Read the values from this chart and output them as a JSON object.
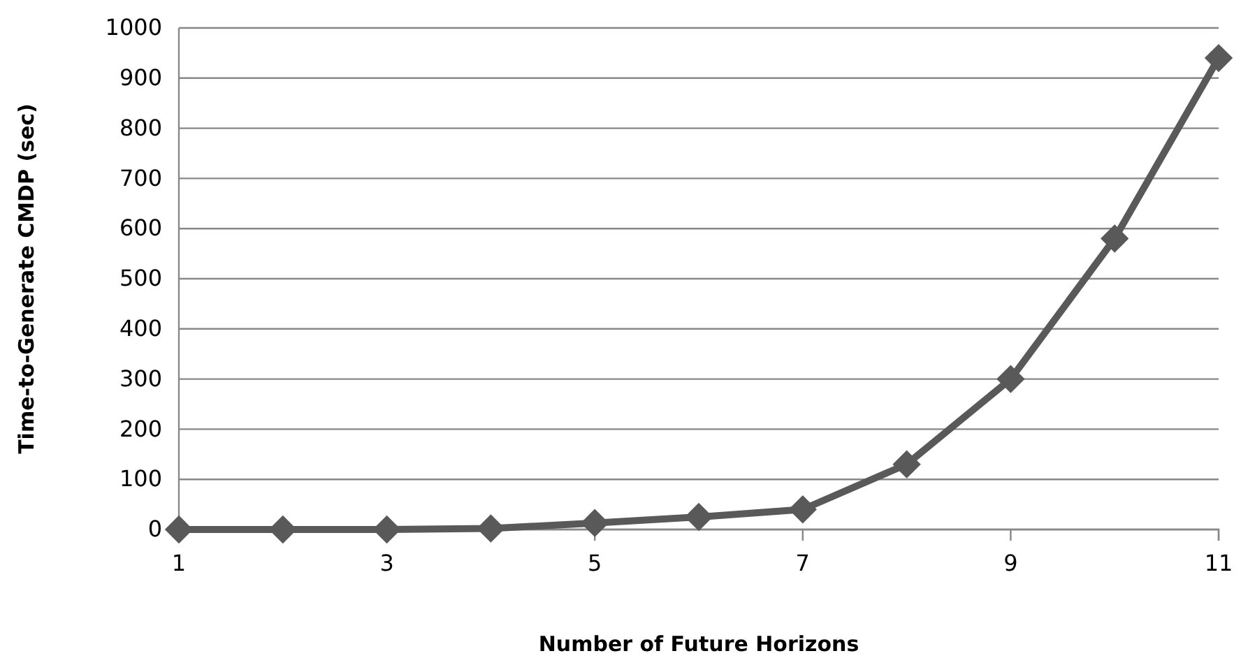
{
  "chart_data": {
    "type": "line",
    "xlabel": "Number of Future Horizons",
    "ylabel": "Time-to-Generate CMDP (sec)",
    "x": [
      1,
      2,
      3,
      4,
      5,
      6,
      7,
      8,
      9,
      10,
      11
    ],
    "series": [
      {
        "color": "#595959",
        "values": [
          0,
          0,
          0,
          2,
          13,
          25,
          40,
          130,
          300,
          580,
          940
        ]
      }
    ],
    "xlim": [
      1,
      11
    ],
    "xticks": [
      1,
      3,
      5,
      7,
      9,
      11
    ],
    "ylim": [
      0,
      1000
    ],
    "yticks": [
      0,
      100,
      200,
      300,
      400,
      500,
      600,
      700,
      800,
      900,
      1000
    ],
    "grid": "y",
    "marker": "diamond",
    "line_style": "solid"
  }
}
